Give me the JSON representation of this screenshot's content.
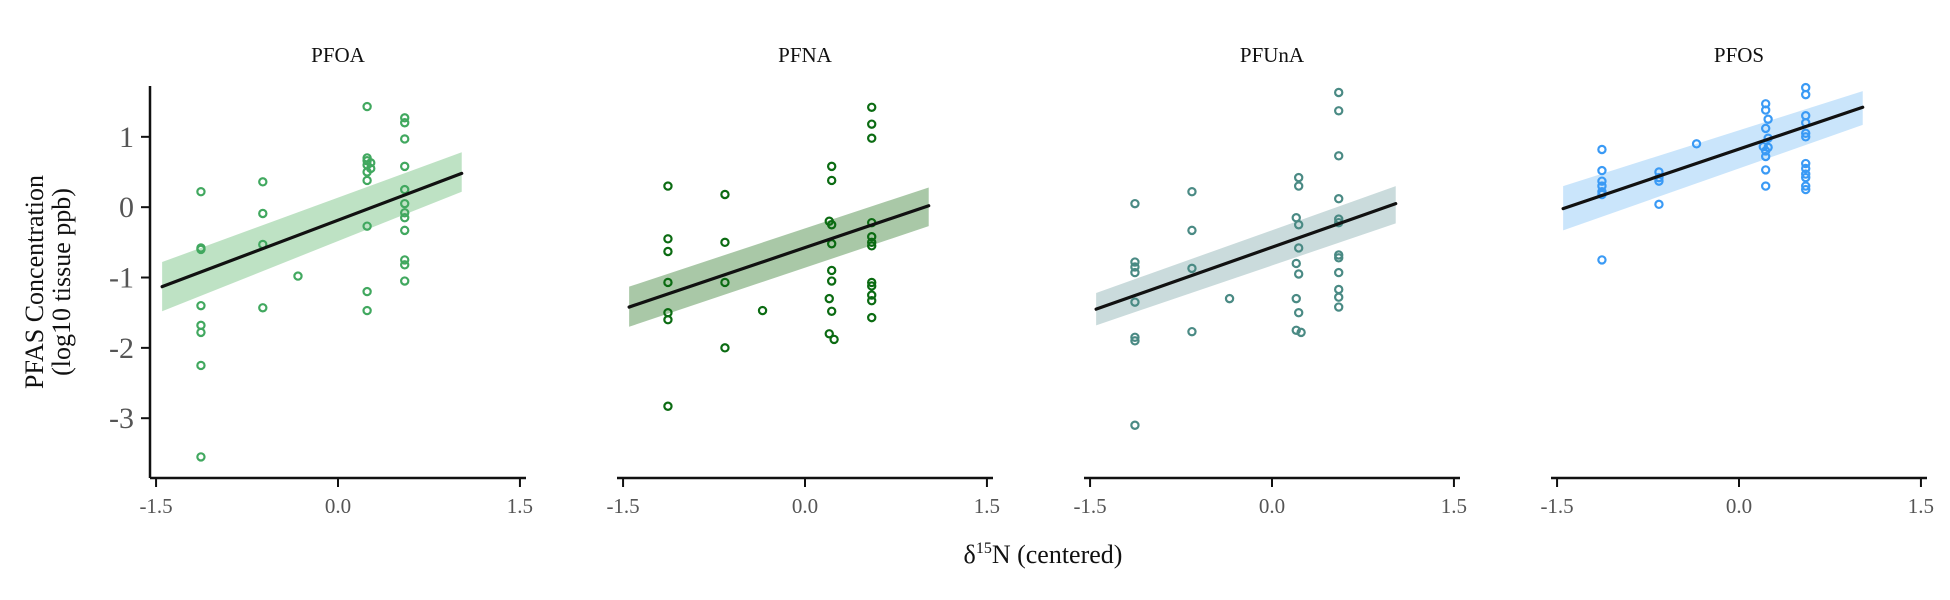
{
  "chart_data": {
    "type": "scatter",
    "xlabel_prefix": "δ",
    "xlabel_sup": "15",
    "xlabel_suffix": "N (centered)",
    "ylabel_line1": "PFAS Concentration",
    "ylabel_line2": "(log10 tissue ppb)",
    "xlim": [
      -1.55,
      1.55
    ],
    "ylim": [
      -3.85,
      1.95
    ],
    "x_ticks": [
      -1.5,
      0.0,
      1.5
    ],
    "x_tick_labels": [
      "-1.5",
      "0.0",
      "1.5"
    ],
    "y_ticks": [
      -3,
      -2,
      -1,
      0,
      1
    ],
    "y_tick_labels": [
      "-3",
      "-2",
      "-1",
      "0",
      "1"
    ],
    "grid": false,
    "legend": "none",
    "panels": [
      {
        "name": "PFOA",
        "color": "#41a85f",
        "band_color": "#a8d8b0",
        "fit": {
          "x": [
            -1.45,
            1.02
          ],
          "y": [
            -1.13,
            0.48
          ]
        },
        "band": {
          "lower": [
            -1.48,
            0.22
          ],
          "upper": [
            -0.78,
            0.78
          ]
        },
        "points": [
          {
            "x": -1.13,
            "y": 0.22
          },
          {
            "x": -1.13,
            "y": -0.58
          },
          {
            "x": -1.13,
            "y": -0.6
          },
          {
            "x": -1.13,
            "y": -1.4
          },
          {
            "x": -1.13,
            "y": -1.68
          },
          {
            "x": -1.13,
            "y": -1.78
          },
          {
            "x": -1.13,
            "y": -2.25
          },
          {
            "x": -1.13,
            "y": -3.55
          },
          {
            "x": -0.62,
            "y": 0.36
          },
          {
            "x": -0.62,
            "y": -0.09
          },
          {
            "x": -0.62,
            "y": -0.53
          },
          {
            "x": -0.62,
            "y": -1.43
          },
          {
            "x": -0.33,
            "y": -0.98
          },
          {
            "x": 0.24,
            "y": 1.43
          },
          {
            "x": 0.24,
            "y": 0.7
          },
          {
            "x": 0.24,
            "y": 0.66
          },
          {
            "x": 0.24,
            "y": 0.6
          },
          {
            "x": 0.24,
            "y": 0.5
          },
          {
            "x": 0.24,
            "y": 0.38
          },
          {
            "x": 0.27,
            "y": 0.63
          },
          {
            "x": 0.27,
            "y": 0.55
          },
          {
            "x": 0.24,
            "y": -0.27
          },
          {
            "x": 0.24,
            "y": -1.2
          },
          {
            "x": 0.24,
            "y": -1.47
          },
          {
            "x": 0.55,
            "y": 1.27
          },
          {
            "x": 0.55,
            "y": 1.2
          },
          {
            "x": 0.55,
            "y": 0.97
          },
          {
            "x": 0.55,
            "y": 0.58
          },
          {
            "x": 0.55,
            "y": 0.25
          },
          {
            "x": 0.55,
            "y": 0.05
          },
          {
            "x": 0.55,
            "y": -0.08
          },
          {
            "x": 0.55,
            "y": -0.15
          },
          {
            "x": 0.55,
            "y": -0.33
          },
          {
            "x": 0.55,
            "y": -0.75
          },
          {
            "x": 0.55,
            "y": -0.82
          },
          {
            "x": 0.55,
            "y": -1.05
          }
        ]
      },
      {
        "name": "PFNA",
        "color": "#0b6b12",
        "band_color": "#8cb58a",
        "fit": {
          "x": [
            -1.45,
            1.02
          ],
          "y": [
            -1.42,
            0.02
          ]
        },
        "band": {
          "lower": [
            -1.7,
            -0.27
          ],
          "upper": [
            -1.13,
            0.28
          ]
        },
        "points": [
          {
            "x": -1.13,
            "y": 0.3
          },
          {
            "x": -1.13,
            "y": -0.45
          },
          {
            "x": -1.13,
            "y": -0.63
          },
          {
            "x": -1.13,
            "y": -1.07
          },
          {
            "x": -1.13,
            "y": -1.5
          },
          {
            "x": -1.13,
            "y": -1.6
          },
          {
            "x": -1.13,
            "y": -2.83
          },
          {
            "x": -0.66,
            "y": 0.18
          },
          {
            "x": -0.66,
            "y": -0.5
          },
          {
            "x": -0.66,
            "y": -1.07
          },
          {
            "x": -0.66,
            "y": -2.0
          },
          {
            "x": -0.35,
            "y": -1.47
          },
          {
            "x": 0.22,
            "y": 0.58
          },
          {
            "x": 0.22,
            "y": 0.38
          },
          {
            "x": 0.2,
            "y": -0.2
          },
          {
            "x": 0.22,
            "y": -0.25
          },
          {
            "x": 0.22,
            "y": -0.52
          },
          {
            "x": 0.22,
            "y": -0.9
          },
          {
            "x": 0.22,
            "y": -1.05
          },
          {
            "x": 0.2,
            "y": -1.3
          },
          {
            "x": 0.22,
            "y": -1.48
          },
          {
            "x": 0.2,
            "y": -1.8
          },
          {
            "x": 0.24,
            "y": -1.88
          },
          {
            "x": 0.55,
            "y": 1.42
          },
          {
            "x": 0.55,
            "y": 1.18
          },
          {
            "x": 0.55,
            "y": 0.98
          },
          {
            "x": 0.55,
            "y": -0.22
          },
          {
            "x": 0.55,
            "y": -0.42
          },
          {
            "x": 0.55,
            "y": -0.5
          },
          {
            "x": 0.55,
            "y": -0.55
          },
          {
            "x": 0.55,
            "y": -1.07
          },
          {
            "x": 0.55,
            "y": -1.12
          },
          {
            "x": 0.55,
            "y": -1.25
          },
          {
            "x": 0.55,
            "y": -1.33
          },
          {
            "x": 0.55,
            "y": -1.57
          }
        ]
      },
      {
        "name": "PFUnA",
        "color": "#4a8a84",
        "band_color": "#b8cfd0",
        "fit": {
          "x": [
            -1.45,
            1.02
          ],
          "y": [
            -1.45,
            0.05
          ]
        },
        "band": {
          "lower": [
            -1.68,
            -0.23
          ],
          "upper": [
            -1.22,
            0.3
          ]
        },
        "points": [
          {
            "x": -1.13,
            "y": 0.05
          },
          {
            "x": -1.13,
            "y": -0.78
          },
          {
            "x": -1.13,
            "y": -0.85
          },
          {
            "x": -1.13,
            "y": -0.93
          },
          {
            "x": -1.13,
            "y": -1.35
          },
          {
            "x": -1.13,
            "y": -1.85
          },
          {
            "x": -1.13,
            "y": -1.9
          },
          {
            "x": -1.13,
            "y": -3.1
          },
          {
            "x": -0.66,
            "y": 0.22
          },
          {
            "x": -0.66,
            "y": -0.33
          },
          {
            "x": -0.66,
            "y": -0.87
          },
          {
            "x": -0.66,
            "y": -1.77
          },
          {
            "x": -0.35,
            "y": -1.3
          },
          {
            "x": 0.22,
            "y": 0.42
          },
          {
            "x": 0.22,
            "y": 0.3
          },
          {
            "x": 0.2,
            "y": -0.15
          },
          {
            "x": 0.22,
            "y": -0.25
          },
          {
            "x": 0.22,
            "y": -0.58
          },
          {
            "x": 0.2,
            "y": -0.8
          },
          {
            "x": 0.22,
            "y": -0.95
          },
          {
            "x": 0.2,
            "y": -1.3
          },
          {
            "x": 0.22,
            "y": -1.5
          },
          {
            "x": 0.2,
            "y": -1.75
          },
          {
            "x": 0.24,
            "y": -1.78
          },
          {
            "x": 0.55,
            "y": 1.63
          },
          {
            "x": 0.55,
            "y": 1.37
          },
          {
            "x": 0.55,
            "y": 0.73
          },
          {
            "x": 0.55,
            "y": 0.12
          },
          {
            "x": 0.55,
            "y": -0.17
          },
          {
            "x": 0.55,
            "y": -0.22
          },
          {
            "x": 0.55,
            "y": -0.68
          },
          {
            "x": 0.55,
            "y": -0.72
          },
          {
            "x": 0.55,
            "y": -0.93
          },
          {
            "x": 0.55,
            "y": -1.17
          },
          {
            "x": 0.55,
            "y": -1.28
          },
          {
            "x": 0.55,
            "y": -1.42
          }
        ]
      },
      {
        "name": "PFOS",
        "color": "#3a9af5",
        "band_color": "#b8dcfa",
        "fit": {
          "x": [
            -1.45,
            1.02
          ],
          "y": [
            -0.02,
            1.42
          ]
        },
        "band": {
          "lower": [
            -0.33,
            1.17
          ],
          "upper": [
            0.3,
            1.65
          ]
        },
        "points": [
          {
            "x": -1.13,
            "y": 0.82
          },
          {
            "x": -1.13,
            "y": 0.52
          },
          {
            "x": -1.13,
            "y": 0.37
          },
          {
            "x": -1.13,
            "y": 0.3
          },
          {
            "x": -1.13,
            "y": 0.22
          },
          {
            "x": -1.13,
            "y": 0.18
          },
          {
            "x": -1.13,
            "y": -0.75
          },
          {
            "x": -0.66,
            "y": 0.5
          },
          {
            "x": -0.66,
            "y": 0.42
          },
          {
            "x": -0.66,
            "y": 0.37
          },
          {
            "x": -0.66,
            "y": 0.04
          },
          {
            "x": -0.35,
            "y": 0.9
          },
          {
            "x": 0.22,
            "y": 1.47
          },
          {
            "x": 0.22,
            "y": 1.38
          },
          {
            "x": 0.24,
            "y": 1.25
          },
          {
            "x": 0.22,
            "y": 1.12
          },
          {
            "x": 0.24,
            "y": 0.98
          },
          {
            "x": 0.2,
            "y": 0.86
          },
          {
            "x": 0.24,
            "y": 0.85
          },
          {
            "x": 0.22,
            "y": 0.8
          },
          {
            "x": 0.22,
            "y": 0.72
          },
          {
            "x": 0.22,
            "y": 0.53
          },
          {
            "x": 0.22,
            "y": 0.3
          },
          {
            "x": 0.55,
            "y": 1.7
          },
          {
            "x": 0.55,
            "y": 1.6
          },
          {
            "x": 0.55,
            "y": 1.3
          },
          {
            "x": 0.55,
            "y": 1.2
          },
          {
            "x": 0.55,
            "y": 1.05
          },
          {
            "x": 0.55,
            "y": 1.0
          },
          {
            "x": 0.55,
            "y": 0.62
          },
          {
            "x": 0.55,
            "y": 0.55
          },
          {
            "x": 0.55,
            "y": 0.47
          },
          {
            "x": 0.55,
            "y": 0.42
          },
          {
            "x": 0.55,
            "y": 0.3
          },
          {
            "x": 0.55,
            "y": 0.25
          }
        ]
      }
    ]
  }
}
